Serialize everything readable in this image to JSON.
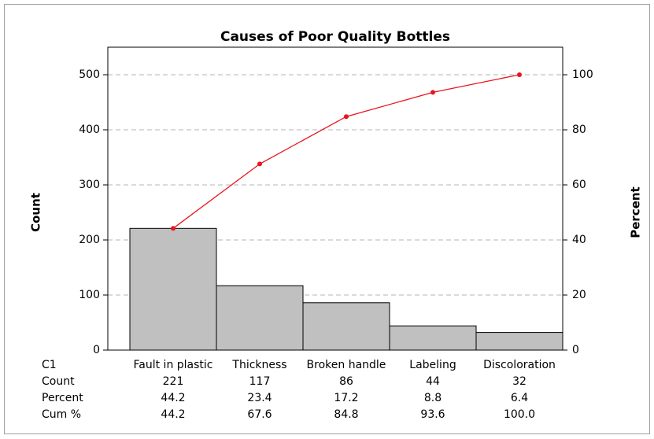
{
  "chart_data": {
    "type": "pareto",
    "title": "Causes of Poor Quality Bottles",
    "y_label": "Count",
    "y2_label": "Percent",
    "category_label": "C1",
    "categories": [
      "Fault in plastic",
      "Thickness",
      "Broken handle",
      "Labeling",
      "Discoloration"
    ],
    "series": [
      {
        "name": "Count",
        "color": "#c0c0c0",
        "values": [
          221,
          117,
          86,
          44,
          32
        ]
      },
      {
        "name": "Cum %",
        "color": "#e8141e",
        "axis": "y2",
        "values": [
          44.2,
          67.6,
          84.8,
          93.6,
          100
        ],
        "value_labels": [
          "44.2",
          "67.6",
          "84.8",
          "93.6",
          "100.0"
        ]
      }
    ],
    "percent": {
      "name": "Percent",
      "values": [
        44.2,
        23.4,
        17.2,
        8.8,
        6.4
      ]
    },
    "ylim": [
      0,
      550
    ],
    "yticks": [
      0,
      100,
      200,
      300,
      400,
      500
    ],
    "y2lim": [
      0,
      110
    ],
    "y2ticks": [
      0,
      20,
      40,
      60,
      80,
      100
    ],
    "grid": true
  }
}
